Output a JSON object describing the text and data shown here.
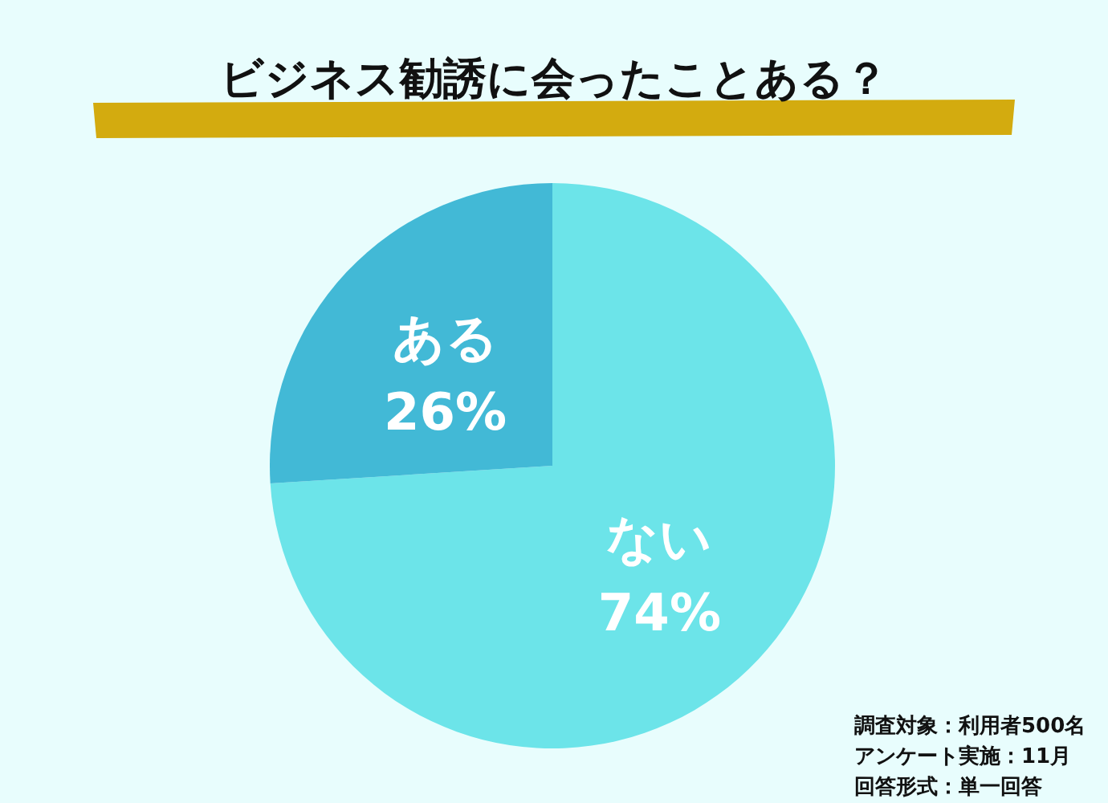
{
  "chart_data": {
    "type": "pie",
    "title": "ビジネス勧誘に会ったことある？",
    "categories": [
      "ない",
      "ある"
    ],
    "values": [
      74,
      26
    ],
    "value_labels": [
      "74%",
      "26%"
    ],
    "colors": [
      "#6ce4e9",
      "#42b9d6"
    ],
    "annotations": [
      "調査対象：利用者500名",
      "アンケート実施：11月",
      "回答形式：単一回答"
    ]
  }
}
